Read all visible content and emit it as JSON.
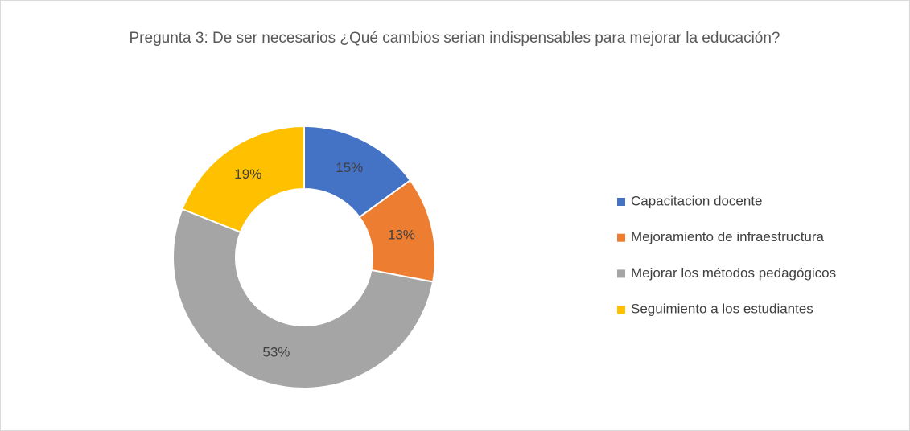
{
  "chart_data": {
    "type": "donut",
    "title": "Pregunta 3: De ser necesarios ¿Qué cambios serian indispensables para mejorar la educación?",
    "categories": [
      "Capacitacion docente",
      "Mejoramiento de infraestructura",
      "Mejorar los métodos pedagógicos",
      "Seguimiento a los estudiantes"
    ],
    "values": [
      15,
      13,
      53,
      19
    ],
    "value_labels": [
      "15%",
      "13%",
      "53%",
      "19%"
    ],
    "colors": [
      "#4472c4",
      "#ed7d31",
      "#a5a5a5",
      "#ffc000"
    ],
    "legend": "right"
  }
}
